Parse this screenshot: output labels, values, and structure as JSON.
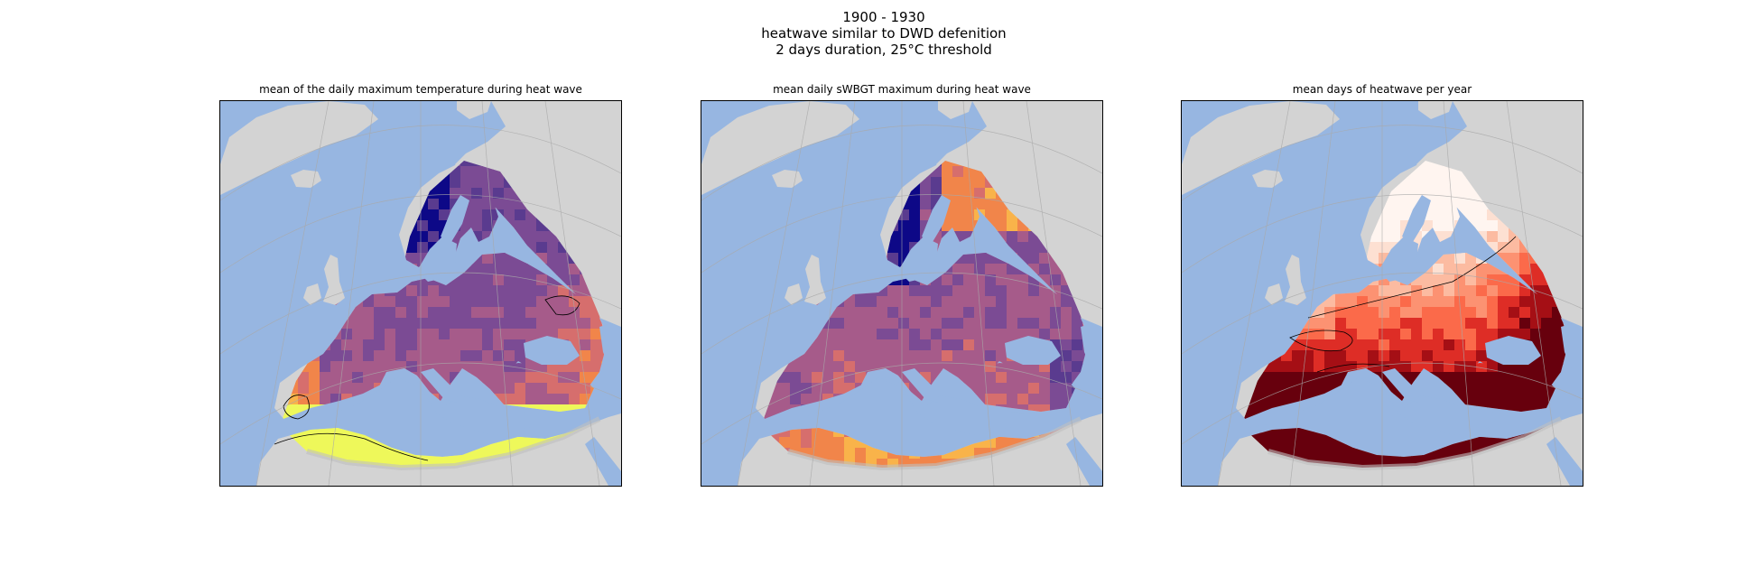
{
  "figure": {
    "title_lines": [
      "1900 - 1930",
      "heatwave similar to DWD defenition",
      "2 days duration, 25°C threshold"
    ]
  },
  "colors": {
    "ocean": "#97b6e1",
    "land": "#d3d3d3",
    "gridline": "#a9a9a9",
    "contour": "#000000"
  },
  "panels": [
    {
      "id": "tmax",
      "title": "mean of the daily maximum temperature during heat wave",
      "colormap": "plasma-like"
    },
    {
      "id": "swbgt",
      "title": "mean daily sWBGT maximum during heat wave",
      "colormap": "plasma-like"
    },
    {
      "id": "days",
      "title": "mean days of heatwave per year",
      "colormap": "reds"
    }
  ]
}
